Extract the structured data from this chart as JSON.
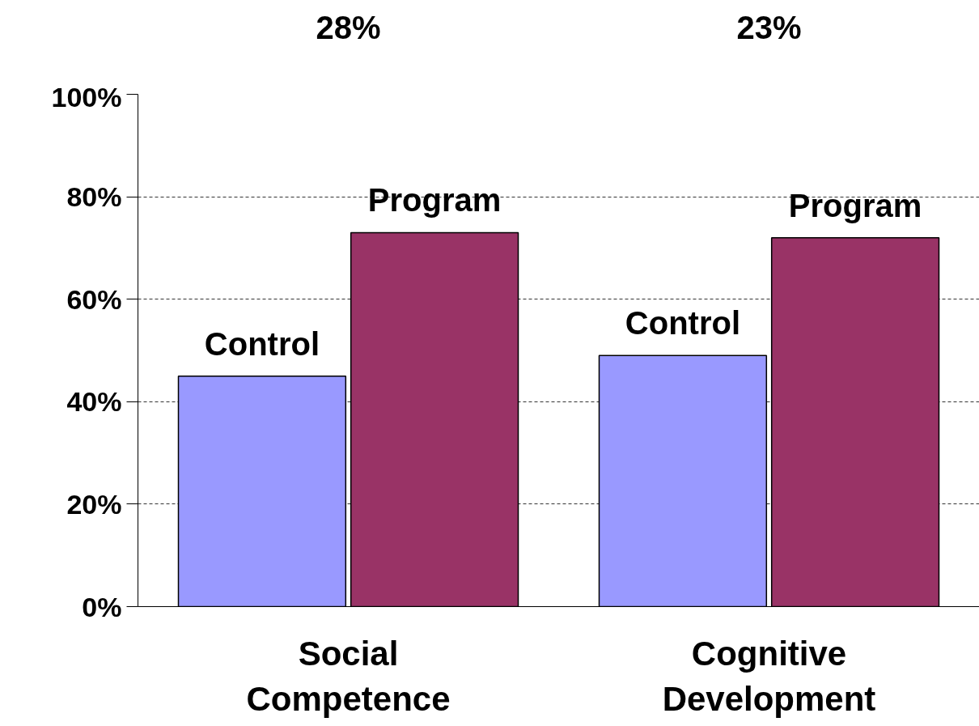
{
  "chart_data": {
    "type": "bar",
    "categories": [
      "Social Competence",
      "Cognitive Development"
    ],
    "series": [
      {
        "name": "Control",
        "color": "#9999ff",
        "values": [
          45,
          49
        ]
      },
      {
        "name": "Program",
        "color": "#993366",
        "values": [
          73,
          72
        ]
      }
    ],
    "annotations": [
      "28%",
      "23%"
    ],
    "ylim": [
      0,
      100
    ],
    "yticks": [
      {
        "value": 0,
        "label": "0%"
      },
      {
        "value": 20,
        "label": "20%"
      },
      {
        "value": 40,
        "label": "40%"
      },
      {
        "value": 60,
        "label": "60%"
      },
      {
        "value": 80,
        "label": "80%"
      },
      {
        "value": 100,
        "label": "100%"
      }
    ],
    "grid": "y"
  }
}
